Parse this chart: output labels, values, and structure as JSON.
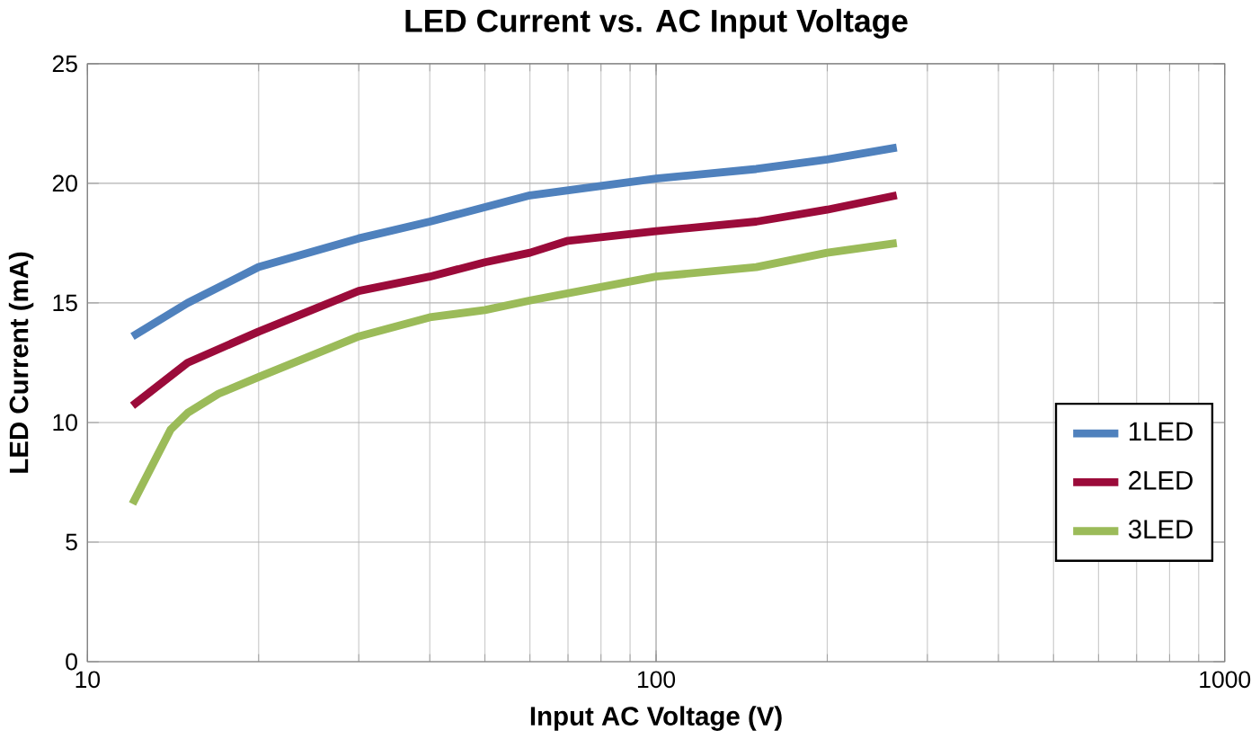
{
  "chart_data": {
    "type": "line",
    "title": "LED Current vs. AC Input Voltage",
    "xlabel": "Input AC Voltage (V)",
    "ylabel": "LED Current (mA)",
    "log": "x",
    "grid": true,
    "legend": "right",
    "marker": "none",
    "line_style": "solid",
    "xlim": [
      10,
      1000
    ],
    "xticks": [
      10,
      100,
      1000
    ],
    "ylim": [
      0,
      25
    ],
    "yticks": [
      0,
      5,
      10,
      15,
      20,
      25
    ],
    "series": [
      {
        "name": "1LED",
        "color": "#4f81bd",
        "x": [
          12,
          15,
          20,
          30,
          40,
          60,
          100,
          150,
          200,
          265
        ],
        "values": [
          13.6,
          15.0,
          16.5,
          17.7,
          18.4,
          19.5,
          20.2,
          20.6,
          21.0,
          21.5
        ]
      },
      {
        "name": "2LED",
        "color": "#9b0b3a",
        "x": [
          12,
          15,
          20,
          30,
          40,
          50,
          60,
          70,
          100,
          150,
          200,
          265
        ],
        "values": [
          10.7,
          12.5,
          13.8,
          15.5,
          16.1,
          16.7,
          17.1,
          17.6,
          18.0,
          18.4,
          18.9,
          19.5
        ]
      },
      {
        "name": "3LED",
        "color": "#9bbb59",
        "x": [
          12,
          14,
          15,
          17,
          20,
          30,
          40,
          50,
          60,
          100,
          150,
          200,
          265
        ],
        "values": [
          6.6,
          9.7,
          10.4,
          11.2,
          11.9,
          13.6,
          14.4,
          14.7,
          15.1,
          16.1,
          16.5,
          17.1,
          17.5
        ]
      }
    ]
  }
}
